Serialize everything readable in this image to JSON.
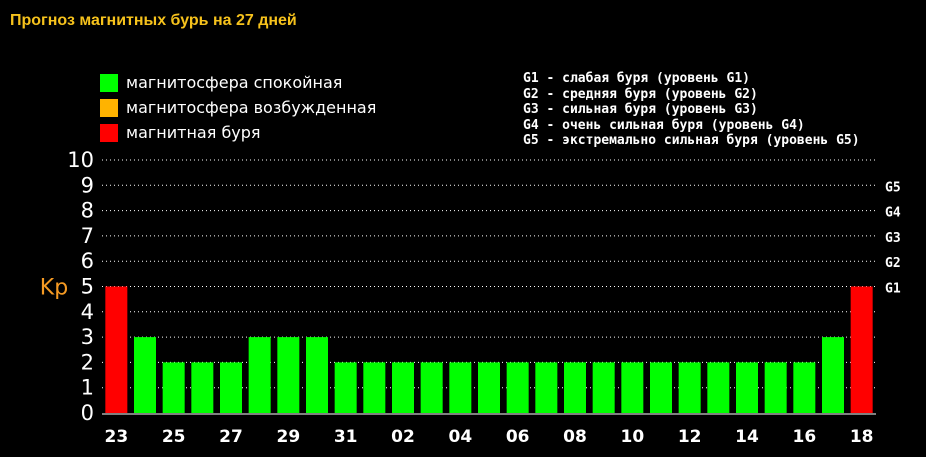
{
  "page": {
    "title": "Прогноз магнитных бурь на 27 дней"
  },
  "legend": {
    "items": [
      {
        "label": "магнитосфера спокойная",
        "color": "#00ff00"
      },
      {
        "label": "магнитосфера возбужденная",
        "color": "#ffb300"
      },
      {
        "label": "магнитная буря",
        "color": "#ff0000"
      }
    ]
  },
  "storm_levels": [
    "G1 - слабая буря (уровень G1)",
    "G2 - средняя буря (уровень G2)",
    "G3 - сильная буря (уровень G3)",
    "G4 - очень сильная буря (уровень G4)",
    "G5 - экстремально сильная буря (уровень G5)"
  ],
  "chart_data": {
    "type": "bar",
    "ylabel": "Kp",
    "ylim": [
      0,
      10
    ],
    "yticks": [
      0,
      1,
      2,
      3,
      4,
      5,
      6,
      7,
      8,
      9,
      10
    ],
    "grid": "horizontal dotted",
    "right_axis": [
      {
        "value": 5,
        "label": "G1"
      },
      {
        "value": 6,
        "label": "G2"
      },
      {
        "value": 7,
        "label": "G3"
      },
      {
        "value": 8,
        "label": "G4"
      },
      {
        "value": 9,
        "label": "G5"
      }
    ],
    "xtick_labels": [
      "23",
      "25",
      "27",
      "29",
      "31",
      "02",
      "04",
      "06",
      "08",
      "10",
      "12",
      "14",
      "16",
      "18"
    ],
    "values": [
      5,
      3,
      2,
      2,
      2,
      3,
      3,
      3,
      2,
      2,
      2,
      2,
      2,
      2,
      2,
      2,
      2,
      2,
      2,
      2,
      2,
      2,
      2,
      2,
      2,
      3,
      5
    ],
    "colors": {
      "calm": "#00ff00",
      "storm": "#ff0000",
      "ylabel": "#f59a23",
      "axis": "#ffffff"
    },
    "storm_threshold": 5
  }
}
